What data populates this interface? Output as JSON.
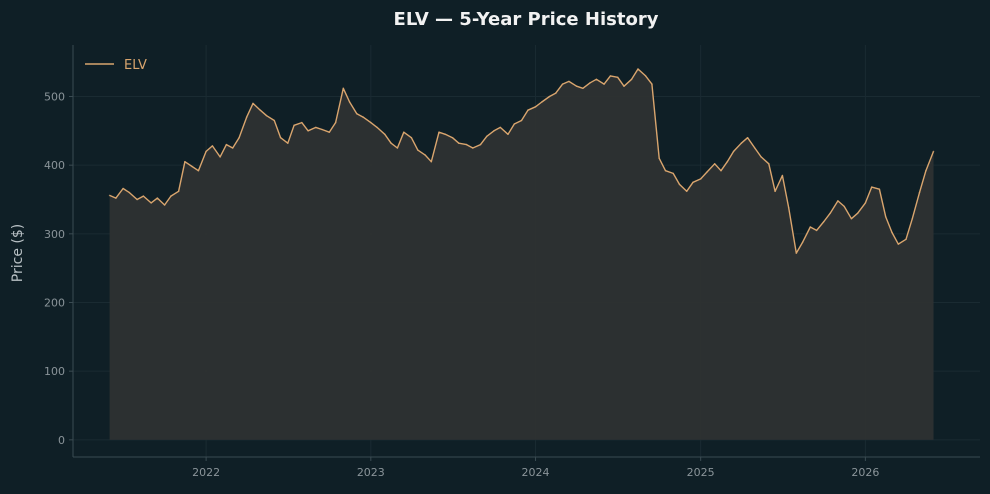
{
  "chart_data": {
    "type": "area",
    "title": "ELV — 5-Year Price History",
    "xlabel": "",
    "ylabel": "Price ($)",
    "xlim": [
      "2021-03-12",
      "2026-09-12"
    ],
    "ylim": [
      -25,
      575
    ],
    "x_ticks": [
      "2022",
      "2023",
      "2024",
      "2025",
      "2026"
    ],
    "y_ticks": [
      0,
      100,
      200,
      300,
      400,
      500
    ],
    "grid": true,
    "legend": "top-left",
    "colors": {
      "background": "#0f1f26",
      "line": "#d9a56e",
      "fill": "#2e3131",
      "grid": "#1a2b32",
      "axis": "#3a4b52",
      "tick_text": "#8a9499",
      "title": "#f2f2f2",
      "ylabel": "#b8c0c4"
    },
    "series": [
      {
        "name": "ELV",
        "x": [
          "2021-06-01",
          "2021-06-15",
          "2021-07-01",
          "2021-07-15",
          "2021-08-01",
          "2021-08-15",
          "2021-09-01",
          "2021-09-15",
          "2021-10-01",
          "2021-10-15",
          "2021-11-01",
          "2021-11-15",
          "2021-12-01",
          "2021-12-15",
          "2022-01-01",
          "2022-01-15",
          "2022-02-01",
          "2022-02-15",
          "2022-03-01",
          "2022-03-15",
          "2022-04-01",
          "2022-04-15",
          "2022-05-01",
          "2022-05-15",
          "2022-06-01",
          "2022-06-15",
          "2022-07-01",
          "2022-07-15",
          "2022-08-01",
          "2022-08-15",
          "2022-09-01",
          "2022-09-15",
          "2022-10-01",
          "2022-10-15",
          "2022-11-01",
          "2022-11-15",
          "2022-12-01",
          "2022-12-15",
          "2023-01-01",
          "2023-01-15",
          "2023-02-01",
          "2023-02-15",
          "2023-03-01",
          "2023-03-15",
          "2023-04-01",
          "2023-04-15",
          "2023-05-01",
          "2023-05-15",
          "2023-06-01",
          "2023-06-15",
          "2023-07-01",
          "2023-07-15",
          "2023-08-01",
          "2023-08-15",
          "2023-09-01",
          "2023-09-15",
          "2023-10-01",
          "2023-10-15",
          "2023-11-01",
          "2023-11-15",
          "2023-12-01",
          "2023-12-15",
          "2024-01-01",
          "2024-01-15",
          "2024-02-01",
          "2024-02-15",
          "2024-03-01",
          "2024-03-15",
          "2024-04-01",
          "2024-04-15",
          "2024-05-01",
          "2024-05-15",
          "2024-06-01",
          "2024-06-15",
          "2024-07-01",
          "2024-07-15",
          "2024-08-01",
          "2024-08-15",
          "2024-09-01",
          "2024-09-15",
          "2024-10-01",
          "2024-10-15",
          "2024-11-01",
          "2024-11-15",
          "2024-12-01",
          "2024-12-15",
          "2025-01-01",
          "2025-01-15",
          "2025-02-01",
          "2025-02-15",
          "2025-03-01",
          "2025-03-15",
          "2025-04-01",
          "2025-04-15",
          "2025-05-01",
          "2025-05-15",
          "2025-06-01",
          "2025-06-15",
          "2025-07-01",
          "2025-07-15",
          "2025-08-01",
          "2025-08-15",
          "2025-09-01",
          "2025-09-15",
          "2025-10-01",
          "2025-10-15",
          "2025-11-01",
          "2025-11-15",
          "2025-12-01",
          "2025-12-15",
          "2026-01-01",
          "2026-01-15",
          "2026-02-01",
          "2026-02-15",
          "2026-03-01",
          "2026-03-15",
          "2026-04-01",
          "2026-04-15",
          "2026-05-01",
          "2026-05-15",
          "2026-06-01"
        ],
        "values": [
          356,
          352,
          366,
          360,
          350,
          355,
          345,
          352,
          342,
          355,
          362,
          405,
          398,
          392,
          420,
          428,
          412,
          430,
          425,
          440,
          470,
          490,
          480,
          472,
          465,
          440,
          432,
          458,
          462,
          450,
          455,
          452,
          448,
          462,
          512,
          492,
          475,
          470,
          462,
          455,
          445,
          432,
          425,
          448,
          440,
          422,
          415,
          405,
          448,
          445,
          440,
          432,
          430,
          425,
          430,
          442,
          450,
          455,
          445,
          460,
          465,
          480,
          485,
          492,
          500,
          505,
          518,
          522,
          515,
          512,
          520,
          525,
          518,
          530,
          528,
          515,
          525,
          540,
          530,
          518,
          410,
          392,
          388,
          372,
          362,
          375,
          380,
          390,
          402,
          392,
          405,
          420,
          432,
          440,
          425,
          412,
          402,
          362,
          385,
          338,
          272,
          288,
          310,
          305,
          318,
          330,
          348,
          340,
          322,
          330,
          345,
          368,
          365,
          325,
          302,
          285,
          292,
          322,
          360,
          392,
          420
        ]
      }
    ]
  }
}
